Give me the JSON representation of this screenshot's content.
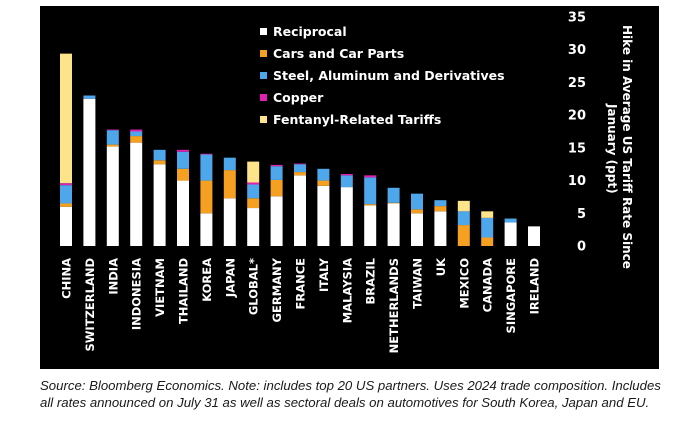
{
  "chart_data": {
    "type": "bar",
    "stacked": true,
    "orientation": "vertical",
    "y_axis_position": "right",
    "ylabel": "Hike in Average US Tariff Rate Since January (ppt)",
    "xlabel": "",
    "ylim": [
      0,
      35
    ],
    "yticks": [
      0,
      5,
      10,
      15,
      20,
      25,
      30,
      35
    ],
    "grid": false,
    "legend_position": "top-center",
    "categories": [
      "CHINA",
      "SWITZERLAND",
      "INDIA",
      "INDONESIA",
      "VIETNAM",
      "THAILAND",
      "KOREA",
      "JAPAN",
      "GLOBAL*",
      "GERMANY",
      "FRANCE",
      "ITALY",
      "MALAYSIA",
      "BRAZIL",
      "NETHERLANDS",
      "TAIWAN",
      "UK",
      "MEXICO",
      "CANADA",
      "SINGAPORE",
      "IRELAND"
    ],
    "series": [
      {
        "name": "Reciprocal",
        "color": "#ffffff",
        "values": [
          6.0,
          22.5,
          15.2,
          15.8,
          12.5,
          10.0,
          5.0,
          7.3,
          5.8,
          7.6,
          10.8,
          9.2,
          9.0,
          6.2,
          6.5,
          5.0,
          5.3,
          0,
          0,
          3.6,
          3.0
        ]
      },
      {
        "name": "Cars and Car Parts",
        "color": "#f5a020",
        "values": [
          0.5,
          0,
          0.3,
          1.0,
          0.6,
          1.8,
          5.0,
          4.3,
          1.5,
          2.5,
          0.5,
          0.8,
          0,
          0.2,
          0.1,
          0.6,
          0.8,
          3.2,
          1.3,
          0,
          0
        ]
      },
      {
        "name": "Steel, Aluminum and Derivatives",
        "color": "#4ea7ea",
        "values": [
          2.8,
          0.5,
          2.2,
          0.7,
          1.6,
          2.6,
          4.0,
          1.9,
          2.1,
          2.1,
          1.2,
          1.8,
          1.8,
          4.1,
          2.3,
          2.4,
          0.9,
          2.1,
          3.0,
          0.6,
          0
        ]
      },
      {
        "name": "Copper",
        "color": "#e020b0",
        "values": [
          0.3,
          0,
          0.1,
          0.3,
          0,
          0.3,
          0.1,
          0,
          0.3,
          0.2,
          0.1,
          0,
          0.2,
          0.3,
          0,
          0,
          0,
          0,
          0,
          0,
          0
        ]
      },
      {
        "name": "Fentanyl-Related Tariffs",
        "color": "#fde38a",
        "values": [
          19.8,
          0,
          0,
          0,
          0,
          0,
          0,
          0,
          3.2,
          0,
          0,
          0,
          0,
          0,
          0,
          0,
          0,
          1.6,
          1.0,
          0,
          0
        ]
      }
    ]
  },
  "source_note": "Source: Bloomberg Economics. Note: includes top 20 US partners. Uses 2024 trade composition. Includes all rates announced on July 31 as well as sectoral deals on automotives for South Korea, Japan and EU."
}
